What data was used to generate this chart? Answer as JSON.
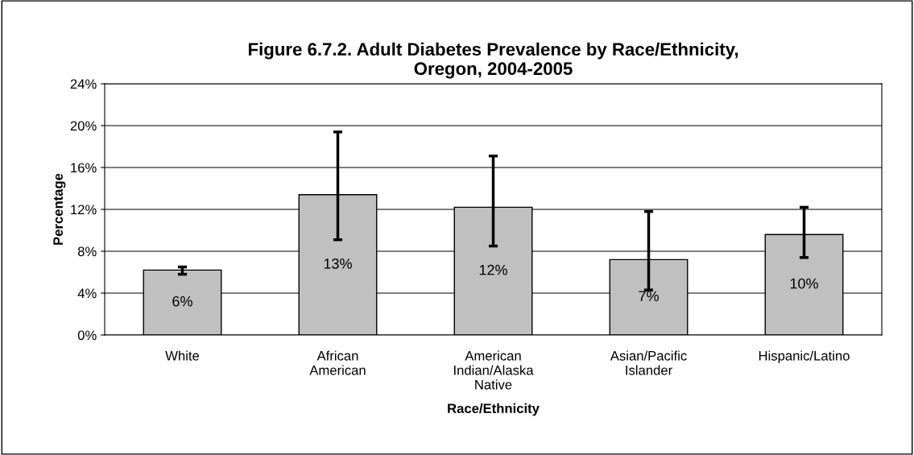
{
  "chart_data": {
    "type": "bar",
    "title": "Figure 6.7.2. Adult Diabetes Prevalence by Race/Ethnicity, Oregon, 2004-2005",
    "xlabel": "Race/Ethnicity",
    "ylabel": "Percentage",
    "categories": [
      "White",
      "African American",
      "American Indian/Alaska Native",
      "Asian/Pacific Islander",
      "Hispanic/Latino"
    ],
    "values": [
      6.2,
      13.4,
      12.2,
      7.2,
      9.6
    ],
    "errors": [
      [
        5.8,
        6.5
      ],
      [
        9.1,
        19.4
      ],
      [
        8.5,
        17.1
      ],
      [
        4.3,
        11.8
      ],
      [
        7.4,
        12.2
      ]
    ],
    "value_labels": [
      "6%",
      "13%",
      "12%",
      "7%",
      "10%"
    ],
    "color": "#c0c0c0",
    "ylim": [
      0,
      24
    ],
    "yticks": [
      {
        "value": 0,
        "label": "0%"
      },
      {
        "value": 4,
        "label": "4%"
      },
      {
        "value": 8,
        "label": "8%"
      },
      {
        "value": 12,
        "label": "12%"
      },
      {
        "value": 16,
        "label": "16%"
      },
      {
        "value": 20,
        "label": "20%"
      },
      {
        "value": 24,
        "label": "24%"
      }
    ],
    "grid": "y"
  }
}
